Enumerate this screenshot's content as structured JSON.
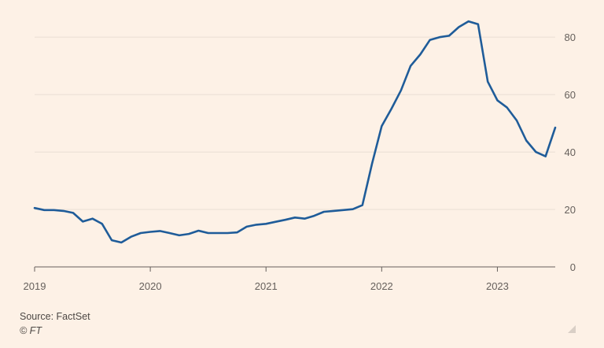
{
  "chart_data": {
    "type": "line",
    "title": "",
    "xlabel": "",
    "ylabel": "",
    "x_tick_labels": [
      "2019",
      "2020",
      "2021",
      "2022",
      "2023"
    ],
    "y_ticks": [
      0,
      20,
      40,
      60,
      80
    ],
    "ylim": [
      0,
      88
    ],
    "xlim": [
      "2019-01",
      "2023-07"
    ],
    "grid": true,
    "y_axis_side": "right",
    "series": [
      {
        "color": "#1F5C99",
        "x": [
          "2019-01",
          "2019-02",
          "2019-03",
          "2019-04",
          "2019-05",
          "2019-06",
          "2019-07",
          "2019-08",
          "2019-09",
          "2019-10",
          "2019-11",
          "2019-12",
          "2020-01",
          "2020-02",
          "2020-03",
          "2020-04",
          "2020-05",
          "2020-06",
          "2020-07",
          "2020-08",
          "2020-09",
          "2020-10",
          "2020-11",
          "2020-12",
          "2021-01",
          "2021-02",
          "2021-03",
          "2021-04",
          "2021-05",
          "2021-06",
          "2021-07",
          "2021-08",
          "2021-09",
          "2021-10",
          "2021-11",
          "2021-12",
          "2022-01",
          "2022-02",
          "2022-03",
          "2022-04",
          "2022-05",
          "2022-06",
          "2022-07",
          "2022-08",
          "2022-09",
          "2022-10",
          "2022-11",
          "2022-12",
          "2023-01",
          "2023-02",
          "2023-03",
          "2023-04",
          "2023-05",
          "2023-06",
          "2023-07"
        ],
        "values": [
          20.5,
          19.8,
          19.8,
          19.5,
          18.8,
          15.8,
          16.8,
          15.0,
          9.3,
          8.5,
          10.5,
          11.8,
          12.2,
          12.5,
          11.8,
          11.0,
          11.5,
          12.6,
          11.8,
          11.8,
          11.8,
          12.0,
          14.0,
          14.7,
          15.0,
          15.7,
          16.4,
          17.2,
          16.8,
          17.8,
          19.2,
          19.5,
          19.8,
          20.1,
          21.5,
          36.0,
          49.0,
          55.0,
          61.5,
          70.0,
          74.0,
          79.0,
          80.0,
          80.5,
          83.5,
          85.5,
          84.5,
          64.5,
          58.0,
          55.5,
          51.0,
          44.0,
          40.0,
          38.5,
          48.5
        ]
      }
    ]
  },
  "footer": {
    "source": "Source: FactSet",
    "credit": "© FT"
  },
  "colors": {
    "background": "#FDF1E6",
    "line": "#1F5C99",
    "gridline": "#E9DED4",
    "axis_text": "#66605C"
  }
}
